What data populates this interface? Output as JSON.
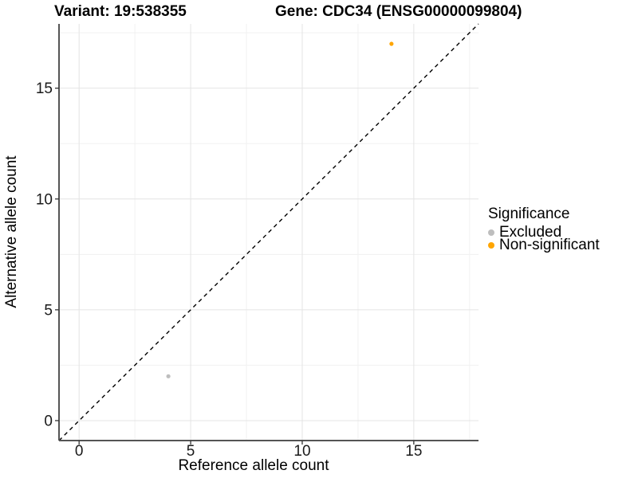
{
  "figure": {
    "title_left": "Variant: 19:538355",
    "title_right": "Gene: CDC34 (ENSG00000099804)"
  },
  "chart_data": {
    "type": "scatter",
    "title": "Variant: 19:538355 — Gene: CDC34 (ENSG00000099804)",
    "xlabel": "Reference allele count",
    "ylabel": "Alternative allele count",
    "xlim": [
      -0.9,
      17.9
    ],
    "ylim": [
      -0.9,
      17.9
    ],
    "xticks": [
      0,
      5,
      10,
      15
    ],
    "yticks": [
      0,
      5,
      10,
      15
    ],
    "x_minor_gridlines": [
      2.5,
      7.5,
      12.5,
      17.5
    ],
    "y_minor_gridlines": [
      2.5,
      7.5,
      12.5,
      17.5
    ],
    "grid": true,
    "legend": {
      "title": "Significance",
      "position": "right"
    },
    "reference_line": {
      "kind": "diagonal-y-equals-x",
      "style": "dashed",
      "color": "#000000"
    },
    "series": [
      {
        "name": "Excluded",
        "color": "#bebebe",
        "points": [
          {
            "x": 4,
            "y": 2
          }
        ]
      },
      {
        "name": "Non-significant",
        "color": "#ffa500",
        "points": [
          {
            "x": 14,
            "y": 17
          }
        ]
      }
    ]
  }
}
